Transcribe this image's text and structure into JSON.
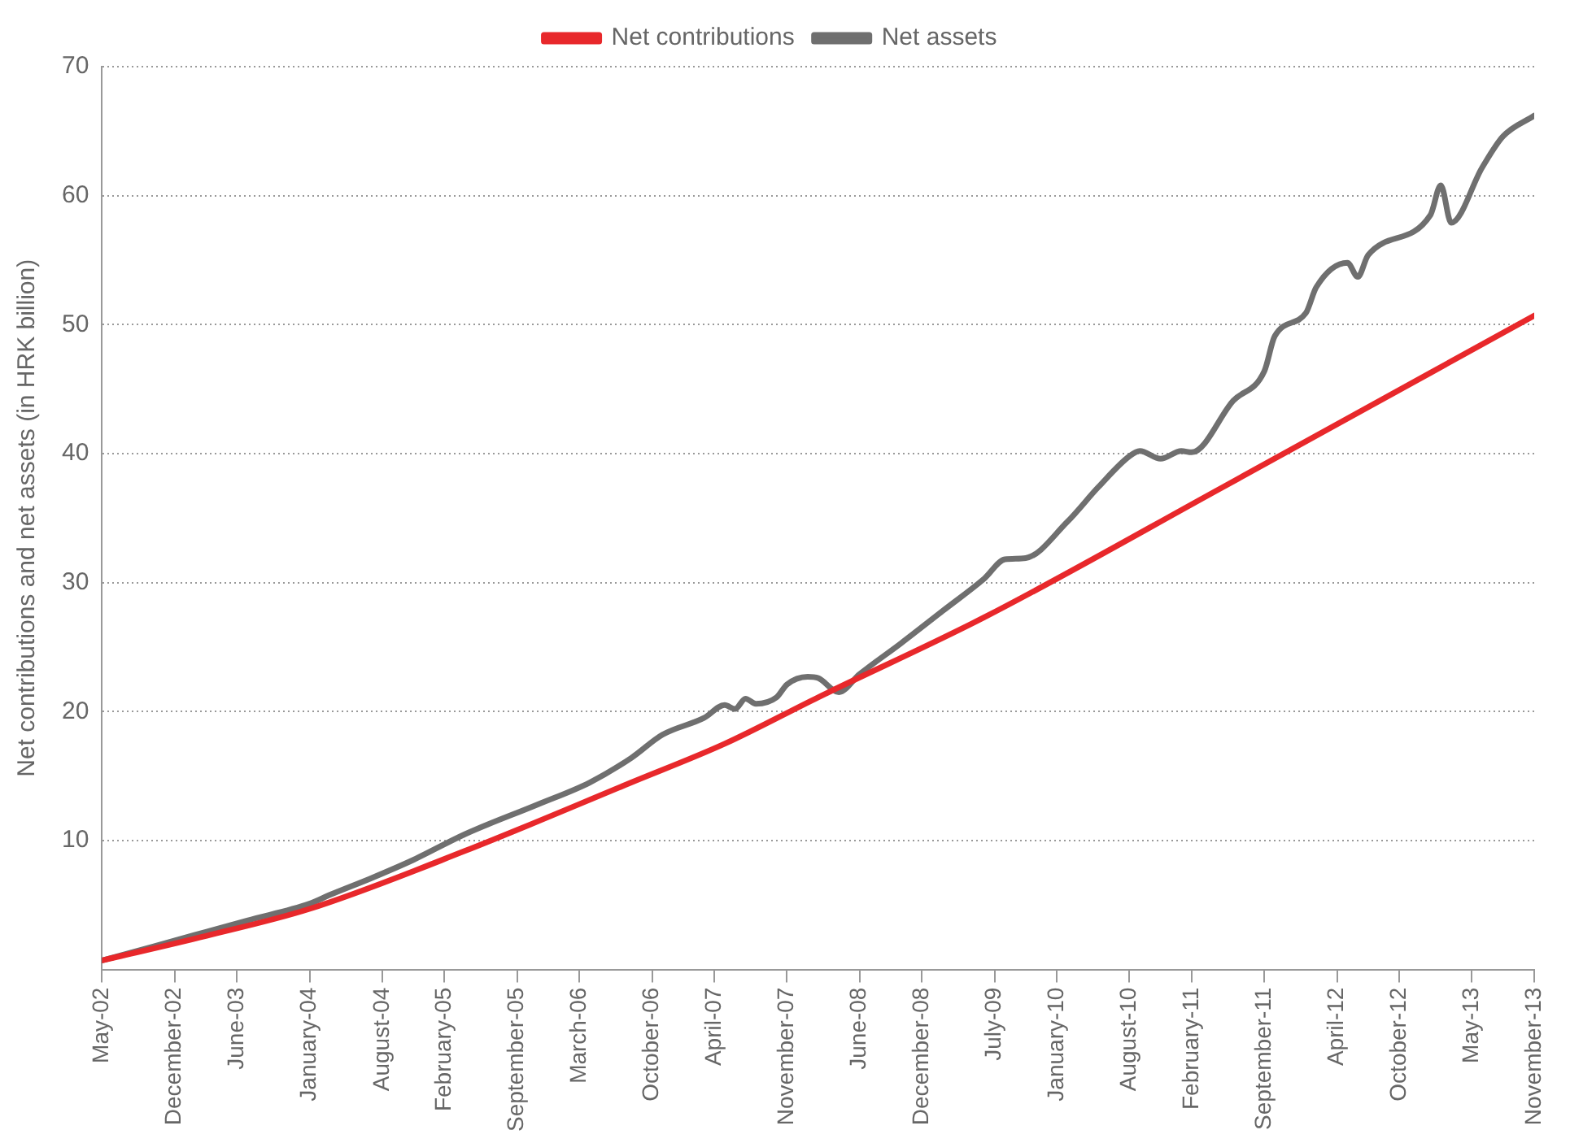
{
  "chart_data": {
    "type": "line",
    "ylabel": "Net contributions and net assets (in HRK billion)",
    "xlim": [
      "2002-05",
      "2013-11"
    ],
    "ylim": [
      0,
      70
    ],
    "yticks": [
      10,
      20,
      30,
      40,
      50,
      60,
      70
    ],
    "xticks": [
      {
        "value": "2002-05",
        "label": "May-02"
      },
      {
        "value": "2002-12",
        "label": "December-02"
      },
      {
        "value": "2003-06",
        "label": "June-03"
      },
      {
        "value": "2004-01",
        "label": "January-04"
      },
      {
        "value": "2004-08",
        "label": "August-04"
      },
      {
        "value": "2005-02",
        "label": "February-05"
      },
      {
        "value": "2005-09",
        "label": "September-05"
      },
      {
        "value": "2006-03",
        "label": "March-06"
      },
      {
        "value": "2006-10",
        "label": "October-06"
      },
      {
        "value": "2007-04",
        "label": "April-07"
      },
      {
        "value": "2007-11",
        "label": "November-07"
      },
      {
        "value": "2008-06",
        "label": "June-08"
      },
      {
        "value": "2008-12",
        "label": "December-08"
      },
      {
        "value": "2009-07",
        "label": "July-09"
      },
      {
        "value": "2010-01",
        "label": "January-10"
      },
      {
        "value": "2010-08",
        "label": "August-10"
      },
      {
        "value": "2011-02",
        "label": "February-11"
      },
      {
        "value": "2011-09",
        "label": "September-11"
      },
      {
        "value": "2012-04",
        "label": "April-12"
      },
      {
        "value": "2012-10",
        "label": "October-12"
      },
      {
        "value": "2013-05",
        "label": "May-13"
      },
      {
        "value": "2013-11",
        "label": "November-13"
      }
    ],
    "grid": "y",
    "legend": "top",
    "marker": "none",
    "line_style": "solid",
    "series": [
      {
        "name": "Net contributions",
        "color": "#e8282b",
        "x": [
          "2002-05",
          "2003-03",
          "2004-01",
          "2005-04",
          "2006-08",
          "2007-05",
          "2008-02",
          "2009-06",
          "2011-05",
          "2013-11"
        ],
        "values": [
          0.7,
          2.6,
          4.7,
          9.2,
          14.5,
          17.5,
          21.1,
          27.3,
          37.4,
          50.7
        ]
      },
      {
        "name": "Net assets",
        "color": "#6f6f6f",
        "x": [
          "2002-05",
          "2002-10",
          "2003-07",
          "2004-01",
          "2004-03",
          "2004-07",
          "2004-11",
          "2005-04",
          "2005-11",
          "2006-04",
          "2006-08",
          "2006-11",
          "2007-03",
          "2007-05",
          "2007-06",
          "2007-07",
          "2007-08",
          "2007-10",
          "2007-11",
          "2008-01",
          "2008-02",
          "2008-04",
          "2008-06",
          "2008-10",
          "2009-02",
          "2009-06",
          "2009-08",
          "2009-10",
          "2010-02",
          "2010-05",
          "2010-08",
          "2010-09",
          "2010-11",
          "2011-01",
          "2011-02",
          "2011-06",
          "2011-09",
          "2011-10",
          "2012-01",
          "2012-02",
          "2012-05",
          "2012-06",
          "2012-07",
          "2013-01",
          "2013-02",
          "2013-03",
          "2013-06",
          "2013-08",
          "2013-11"
        ],
        "values": [
          0.7,
          1.8,
          3.8,
          5.1,
          5.8,
          7.1,
          8.5,
          10.5,
          12.8,
          14.5,
          16.4,
          18.2,
          19.5,
          20.5,
          20.2,
          21.0,
          20.6,
          21.1,
          22.1,
          22.7,
          22.6,
          21.5,
          22.9,
          25.3,
          27.8,
          30.3,
          31.8,
          31.9,
          34.7,
          37.4,
          39.8,
          40.2,
          39.6,
          40.2,
          40.1,
          44.1,
          46.4,
          49.1,
          50.9,
          52.9,
          54.8,
          53.7,
          55.4,
          58.5,
          60.8,
          57.9,
          62.2,
          64.6,
          66.2
        ]
      }
    ]
  }
}
